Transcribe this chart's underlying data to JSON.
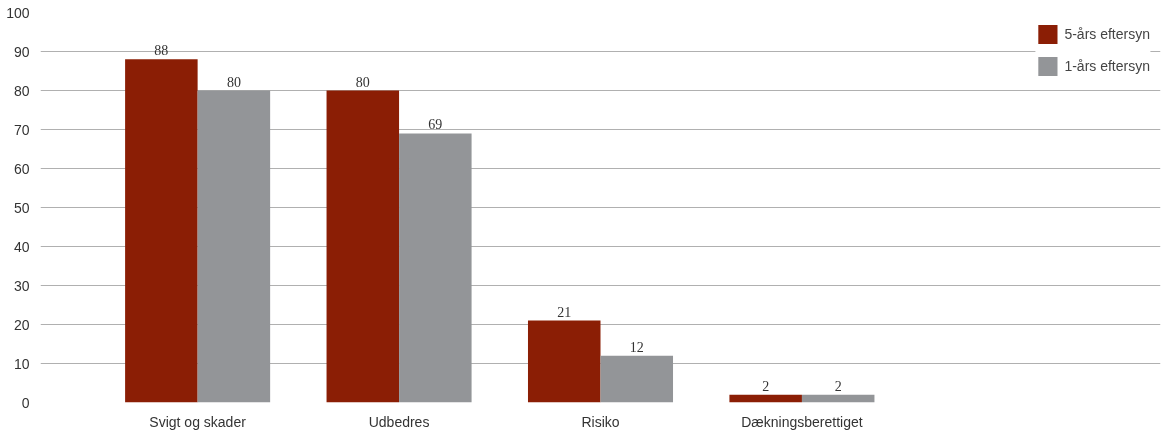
{
  "chart_data": {
    "type": "bar",
    "categories": [
      "Svigt og skader",
      "Udbedres",
      "Risiko",
      "Dækningsberettiget"
    ],
    "series": [
      {
        "name": "5-års eftersyn",
        "color": "#8b1e05",
        "values": [
          88,
          80,
          21,
          2
        ]
      },
      {
        "name": "1-års eftersyn",
        "color": "#939598",
        "values": [
          80,
          69,
          12,
          2
        ]
      }
    ],
    "ylim": [
      0,
      100
    ],
    "yticks": [
      0,
      10,
      20,
      30,
      40,
      50,
      60,
      70,
      80,
      90,
      100
    ],
    "grid": "y",
    "legend": "top right",
    "data_labels": true
  }
}
